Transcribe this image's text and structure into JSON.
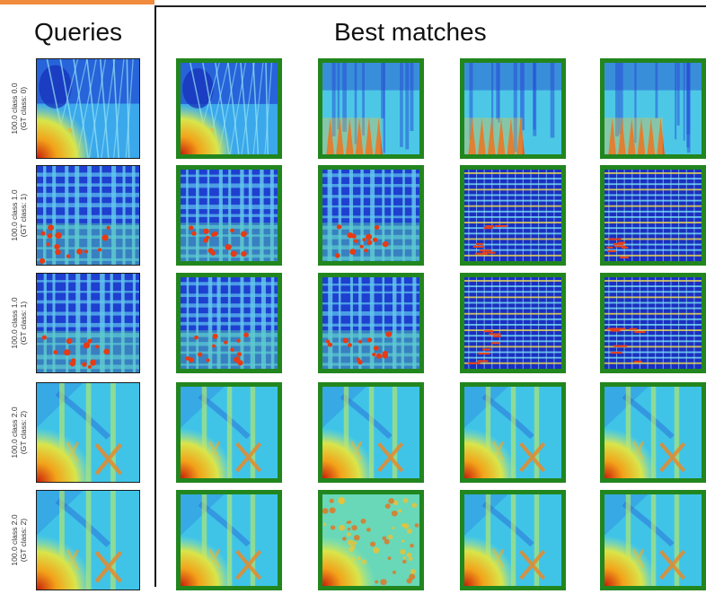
{
  "headings": {
    "queries": "Queries",
    "best_matches": "Best matches"
  },
  "colors": {
    "accent": "#f08a3c",
    "match_border": "#22861e",
    "query_border": "#1a1a1a"
  },
  "rows": [
    {
      "label": {
        "line1": "100.0 class 0.0",
        "line2": "(GT class: 0)"
      },
      "query_pattern": "class0-diagonal",
      "match_patterns": [
        "class0-diagonal",
        "spiky-mixed",
        "spiky-mixed",
        "spiky-mixed"
      ]
    },
    {
      "label": {
        "line1": "100.0 class 1.0",
        "line2": "(GT class: 1)"
      },
      "query_pattern": "grid-dark",
      "match_patterns": [
        "grid-dark",
        "grid-dark",
        "banded",
        "banded"
      ]
    },
    {
      "label": {
        "line1": "100.0 class 1.0",
        "line2": "(GT class: 1)"
      },
      "query_pattern": "grid-dark",
      "match_patterns": [
        "grid-dark",
        "grid-dark",
        "banded",
        "banded"
      ]
    },
    {
      "label": {
        "line1": "100.0 class 2.0",
        "line2": "(GT class: 2)"
      },
      "query_pattern": "smooth-x",
      "match_patterns": [
        "smooth-x",
        "smooth-x",
        "smooth-x",
        "smooth-x"
      ]
    },
    {
      "label": {
        "line1": "100.0 class 2.0",
        "line2": "(GT class: 2)"
      },
      "query_pattern": "smooth-x",
      "match_patterns": [
        "smooth-x",
        "dotted",
        "smooth-x",
        "smooth-x"
      ]
    }
  ]
}
